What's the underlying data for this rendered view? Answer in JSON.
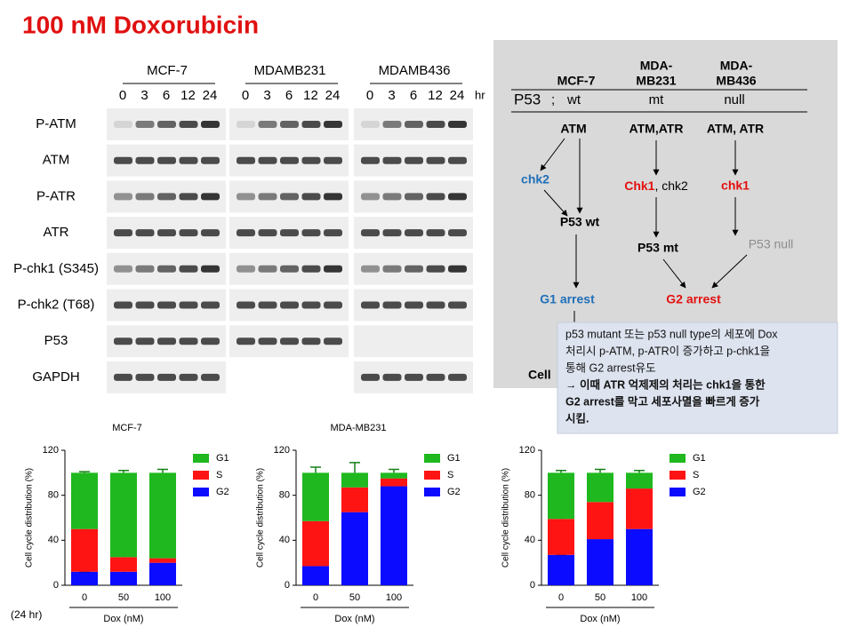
{
  "title": "100 nM Doxorubicin",
  "blot": {
    "groups": [
      "MCF-7",
      "MDAMB231",
      "MDAMB436"
    ],
    "times": [
      "0",
      "3",
      "6",
      "12",
      "24"
    ],
    "unit": "hr",
    "rows": [
      "P-ATM",
      "ATM",
      "P-ATR",
      "ATR",
      "P-chk1 (S345)",
      "P-chk2 (T68)",
      "P53",
      "GAPDH"
    ]
  },
  "diagram": {
    "headers": [
      [
        "MCF-7"
      ],
      [
        "MDA-",
        "MB231"
      ],
      [
        "MDA-",
        "MB436"
      ]
    ],
    "p53_label": "P53",
    "separator": ";",
    "p53_status": [
      "wt",
      "mt",
      "null"
    ],
    "sensors": [
      "ATM",
      "ATM,ATR",
      "ATM, ATR"
    ],
    "chk2_left": "chk2",
    "chk1_mid": "Chk1",
    "chk2_mid": ", chk2",
    "chk1_right": "chk1",
    "p53_wt": "P53 wt",
    "p53_mt": "P53 mt",
    "p53_null": "P53 null",
    "g1": "G1 arrest",
    "g2": "G2 arrest",
    "cell": "Cell"
  },
  "note": {
    "lines": [
      "p53 mutant 또는 p53 null type의 세포에 Dox",
      "처리시 p-ATM, p-ATR이 증가하고 p-chk1을",
      "통해 G2 arrest유도",
      "→ 이때 ATR 억제제의 처리는 chk1을 통한",
      "G2 arrest를 막고 세포사멸을 빠르게 증가",
      "시킴."
    ],
    "emphasis": [
      false,
      false,
      false,
      true,
      true,
      true
    ]
  },
  "footnote": "(24 hr)",
  "chart_data": [
    {
      "type": "bar",
      "stacked": true,
      "title": "MCF-7",
      "categories": [
        "0",
        "50",
        "100"
      ],
      "xlabel": "Dox (nM)",
      "ylabel": "Cell cycle distribution (%)",
      "ylim": [
        0,
        120
      ],
      "yticks": [
        0,
        40,
        80,
        120
      ],
      "legend": "right",
      "series": [
        {
          "name": "G2",
          "color": "#0b0bff",
          "values": [
            12,
            12,
            20
          ],
          "errors": [
            0,
            1,
            2
          ]
        },
        {
          "name": "S",
          "color": "#ff1414",
          "values": [
            38,
            13,
            4
          ],
          "errors": [
            1,
            1,
            1
          ]
        },
        {
          "name": "G1",
          "color": "#1fb81f",
          "values": [
            50,
            75,
            76
          ],
          "errors": [
            1,
            2,
            3
          ]
        }
      ]
    },
    {
      "type": "bar",
      "stacked": true,
      "title": "MDA-MB231",
      "categories": [
        "0",
        "50",
        "100"
      ],
      "xlabel": "Dox (nM)",
      "ylabel": "Cell cycle distribution (%)",
      "ylim": [
        0,
        120
      ],
      "yticks": [
        0,
        40,
        80,
        120
      ],
      "legend": "right",
      "series": [
        {
          "name": "G2",
          "color": "#0b0bff",
          "values": [
            17,
            65,
            88
          ],
          "errors": [
            2,
            10,
            3
          ]
        },
        {
          "name": "S",
          "color": "#ff1414",
          "values": [
            40,
            22,
            7
          ],
          "errors": [
            4,
            3,
            2
          ]
        },
        {
          "name": "G1",
          "color": "#1fb81f",
          "values": [
            43,
            13,
            5
          ],
          "errors": [
            5,
            9,
            3
          ]
        }
      ]
    },
    {
      "type": "bar",
      "stacked": true,
      "categories": [
        "0",
        "50",
        "100"
      ],
      "xlabel": "Dox (nM)",
      "ylabel": "Cell cycle distribution (%)",
      "ylim": [
        0,
        120
      ],
      "yticks": [
        0,
        40,
        80,
        120
      ],
      "legend": "right",
      "series": [
        {
          "name": "G2",
          "color": "#0b0bff",
          "values": [
            27,
            41,
            50
          ],
          "errors": [
            0,
            2,
            3
          ]
        },
        {
          "name": "S",
          "color": "#ff1414",
          "values": [
            32,
            33,
            36
          ],
          "errors": [
            1,
            1,
            1
          ]
        },
        {
          "name": "G1",
          "color": "#1fb81f",
          "values": [
            41,
            26,
            14
          ],
          "errors": [
            2,
            3,
            2
          ]
        }
      ]
    }
  ]
}
